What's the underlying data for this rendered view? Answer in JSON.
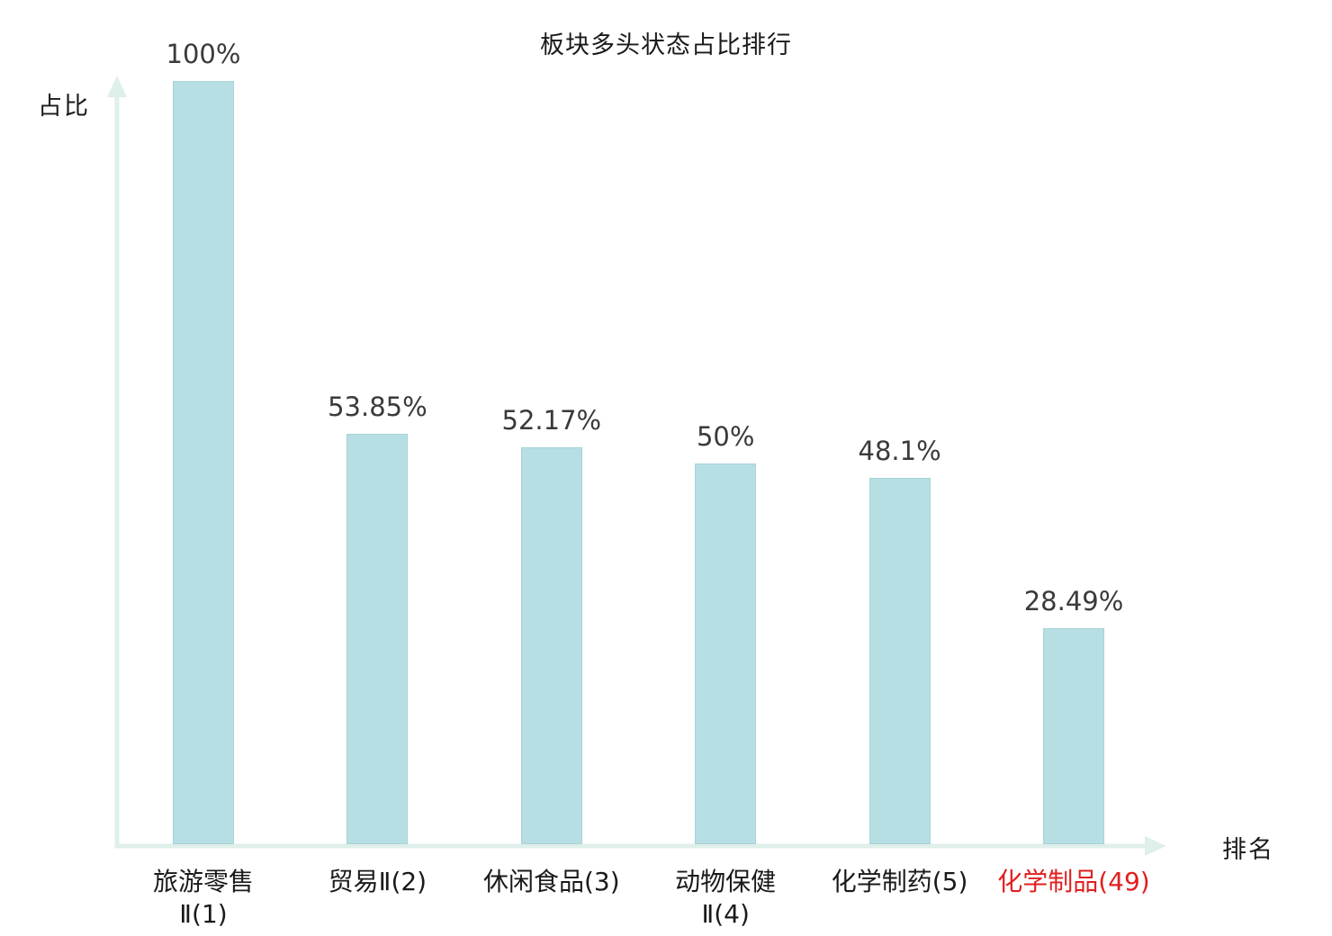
{
  "chart_data": {
    "type": "bar",
    "title": "板块多头状态占比排行",
    "xlabel": "排名",
    "ylabel": "占比",
    "categories": [
      "旅游零售\nⅡ(1)",
      "贸易Ⅱ(2)",
      "休闲食品(3)",
      "动物保健\nⅡ(4)",
      "化学制药(5)",
      "化学制品(49)"
    ],
    "values": [
      100,
      53.85,
      52.17,
      50,
      48.1,
      28.49
    ],
    "value_labels": [
      "100%",
      "53.85%",
      "52.17%",
      "50%",
      "48.1%",
      "28.49%"
    ],
    "highlight_index": 5,
    "ylim": [
      0,
      100
    ],
    "grid": false,
    "legend": "none",
    "colors": {
      "bar_fill": "#b7dee3",
      "bar_border": "#a6d3da",
      "axis": "#dfefe9",
      "value_text": "#3a3a3a",
      "category_text": "#1a1a1a",
      "highlight_text": "#e02020",
      "title_text": "#1a1a1a"
    }
  }
}
